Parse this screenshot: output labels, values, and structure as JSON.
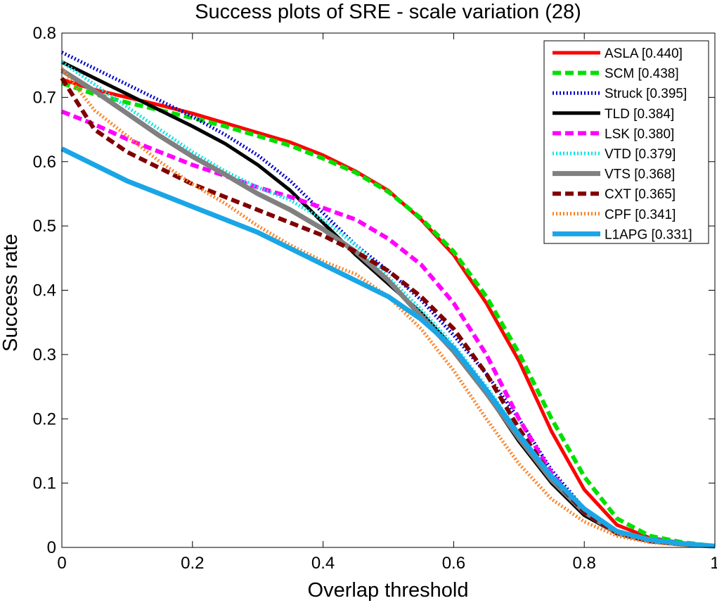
{
  "chart_data": {
    "type": "line",
    "title": "Success plots of SRE - scale variation (28)",
    "xlabel": "Overlap threshold",
    "ylabel": "Success rate",
    "xlim": [
      0,
      1
    ],
    "ylim": [
      0,
      0.8
    ],
    "xticks": [
      "0",
      "0.2",
      "0.4",
      "0.6",
      "0.8",
      "1"
    ],
    "yticks": [
      "0",
      "0.1",
      "0.2",
      "0.3",
      "0.4",
      "0.5",
      "0.6",
      "0.7",
      "0.8"
    ],
    "grid": false,
    "legend_position": "top-right",
    "series": [
      {
        "name": "ASLA [0.440]",
        "color": "#ff0000",
        "style": "solid",
        "width": 5,
        "x": [
          0,
          0.05,
          0.1,
          0.15,
          0.2,
          0.25,
          0.3,
          0.35,
          0.4,
          0.45,
          0.5,
          0.55,
          0.6,
          0.65,
          0.7,
          0.75,
          0.8,
          0.85,
          0.9,
          0.95,
          1
        ],
        "y": [
          0.728,
          0.712,
          0.7,
          0.688,
          0.675,
          0.66,
          0.645,
          0.63,
          0.61,
          0.585,
          0.555,
          0.51,
          0.455,
          0.38,
          0.29,
          0.18,
          0.09,
          0.035,
          0.015,
          0.007,
          0.002
        ]
      },
      {
        "name": "SCM [0.438]",
        "color": "#00e000",
        "style": "dashed",
        "width": 6,
        "x": [
          0,
          0.05,
          0.1,
          0.15,
          0.2,
          0.25,
          0.3,
          0.35,
          0.4,
          0.45,
          0.5,
          0.55,
          0.6,
          0.65,
          0.7,
          0.75,
          0.8,
          0.85,
          0.9,
          0.95,
          1
        ],
        "y": [
          0.722,
          0.705,
          0.692,
          0.68,
          0.668,
          0.655,
          0.64,
          0.625,
          0.605,
          0.583,
          0.553,
          0.512,
          0.46,
          0.39,
          0.302,
          0.2,
          0.11,
          0.045,
          0.018,
          0.008,
          0.002
        ]
      },
      {
        "name": "Struck [0.395]",
        "color": "#0000cc",
        "style": "dotted",
        "width": 5,
        "x": [
          0,
          0.05,
          0.1,
          0.15,
          0.2,
          0.25,
          0.3,
          0.35,
          0.4,
          0.45,
          0.5,
          0.55,
          0.6,
          0.65,
          0.7,
          0.75,
          0.8,
          0.85,
          0.9,
          0.95,
          1
        ],
        "y": [
          0.77,
          0.745,
          0.72,
          0.695,
          0.67,
          0.642,
          0.61,
          0.57,
          0.52,
          0.47,
          0.43,
          0.385,
          0.33,
          0.27,
          0.2,
          0.12,
          0.06,
          0.025,
          0.01,
          0.005,
          0.002
        ]
      },
      {
        "name": "TLD [0.384]",
        "color": "#000000",
        "style": "solid",
        "width": 5,
        "x": [
          0,
          0.05,
          0.1,
          0.15,
          0.2,
          0.25,
          0.3,
          0.35,
          0.4,
          0.45,
          0.5,
          0.55,
          0.6,
          0.65,
          0.7,
          0.75,
          0.8,
          0.85,
          0.9,
          0.95,
          1
        ],
        "y": [
          0.755,
          0.73,
          0.705,
          0.68,
          0.655,
          0.628,
          0.595,
          0.555,
          0.505,
          0.455,
          0.41,
          0.365,
          0.31,
          0.24,
          0.165,
          0.1,
          0.05,
          0.022,
          0.01,
          0.005,
          0.002
        ]
      },
      {
        "name": "LSK [0.380]",
        "color": "#ff00ff",
        "style": "dashed",
        "width": 6,
        "x": [
          0,
          0.05,
          0.1,
          0.15,
          0.2,
          0.25,
          0.3,
          0.35,
          0.4,
          0.45,
          0.5,
          0.55,
          0.6,
          0.65,
          0.7,
          0.75,
          0.8,
          0.85,
          0.9,
          0.95,
          1
        ],
        "y": [
          0.678,
          0.658,
          0.635,
          0.615,
          0.595,
          0.578,
          0.56,
          0.545,
          0.528,
          0.51,
          0.48,
          0.44,
          0.38,
          0.3,
          0.2,
          0.115,
          0.055,
          0.022,
          0.01,
          0.005,
          0.002
        ]
      },
      {
        "name": "VTD [0.379]",
        "color": "#00e6e6",
        "style": "dotted",
        "width": 5,
        "x": [
          0,
          0.05,
          0.1,
          0.15,
          0.2,
          0.25,
          0.3,
          0.35,
          0.4,
          0.45,
          0.5,
          0.55,
          0.6,
          0.65,
          0.7,
          0.75,
          0.8,
          0.85,
          0.9,
          0.95,
          1
        ],
        "y": [
          0.755,
          0.72,
          0.685,
          0.65,
          0.615,
          0.585,
          0.56,
          0.54,
          0.51,
          0.47,
          0.42,
          0.37,
          0.315,
          0.25,
          0.178,
          0.11,
          0.055,
          0.022,
          0.01,
          0.005,
          0.002
        ]
      },
      {
        "name": "VTS [0.368]",
        "color": "#808080",
        "style": "solid",
        "width": 7,
        "x": [
          0,
          0.05,
          0.1,
          0.15,
          0.2,
          0.25,
          0.3,
          0.35,
          0.4,
          0.45,
          0.5,
          0.55,
          0.6,
          0.65,
          0.7,
          0.75,
          0.8,
          0.85,
          0.9,
          0.95,
          1
        ],
        "y": [
          0.742,
          0.71,
          0.675,
          0.64,
          0.608,
          0.58,
          0.55,
          0.525,
          0.495,
          0.46,
          0.415,
          0.36,
          0.305,
          0.24,
          0.17,
          0.105,
          0.055,
          0.022,
          0.01,
          0.005,
          0.002
        ]
      },
      {
        "name": "CXT [0.365]",
        "color": "#800000",
        "style": "dashed",
        "width": 6,
        "x": [
          0,
          0.05,
          0.1,
          0.15,
          0.2,
          0.25,
          0.3,
          0.35,
          0.4,
          0.45,
          0.5,
          0.55,
          0.6,
          0.65,
          0.7,
          0.75,
          0.8,
          0.85,
          0.9,
          0.95,
          1
        ],
        "y": [
          0.73,
          0.65,
          0.615,
          0.59,
          0.565,
          0.545,
          0.525,
          0.505,
          0.485,
          0.46,
          0.43,
          0.39,
          0.34,
          0.27,
          0.185,
          0.11,
          0.055,
          0.022,
          0.01,
          0.005,
          0.002
        ]
      },
      {
        "name": "CPF [0.341]",
        "color": "#ff7f1f",
        "style": "dotted",
        "width": 5,
        "x": [
          0,
          0.05,
          0.1,
          0.15,
          0.2,
          0.25,
          0.3,
          0.35,
          0.4,
          0.45,
          0.5,
          0.55,
          0.6,
          0.65,
          0.7,
          0.75,
          0.8,
          0.85,
          0.9,
          0.95,
          1
        ],
        "y": [
          0.745,
          0.68,
          0.64,
          0.6,
          0.565,
          0.535,
          0.5,
          0.47,
          0.445,
          0.425,
          0.39,
          0.34,
          0.275,
          0.2,
          0.13,
          0.075,
          0.04,
          0.018,
          0.008,
          0.004,
          0.002
        ]
      },
      {
        "name": "L1APG [0.331]",
        "color": "#1aa6e6",
        "style": "solid",
        "width": 7,
        "x": [
          0,
          0.05,
          0.1,
          0.15,
          0.2,
          0.25,
          0.3,
          0.35,
          0.4,
          0.45,
          0.5,
          0.55,
          0.6,
          0.65,
          0.7,
          0.75,
          0.8,
          0.85,
          0.9,
          0.95,
          1
        ],
        "y": [
          0.62,
          0.595,
          0.57,
          0.55,
          0.53,
          0.51,
          0.49,
          0.465,
          0.44,
          0.415,
          0.39,
          0.355,
          0.31,
          0.245,
          0.175,
          0.11,
          0.06,
          0.025,
          0.012,
          0.006,
          0.002
        ]
      }
    ]
  }
}
